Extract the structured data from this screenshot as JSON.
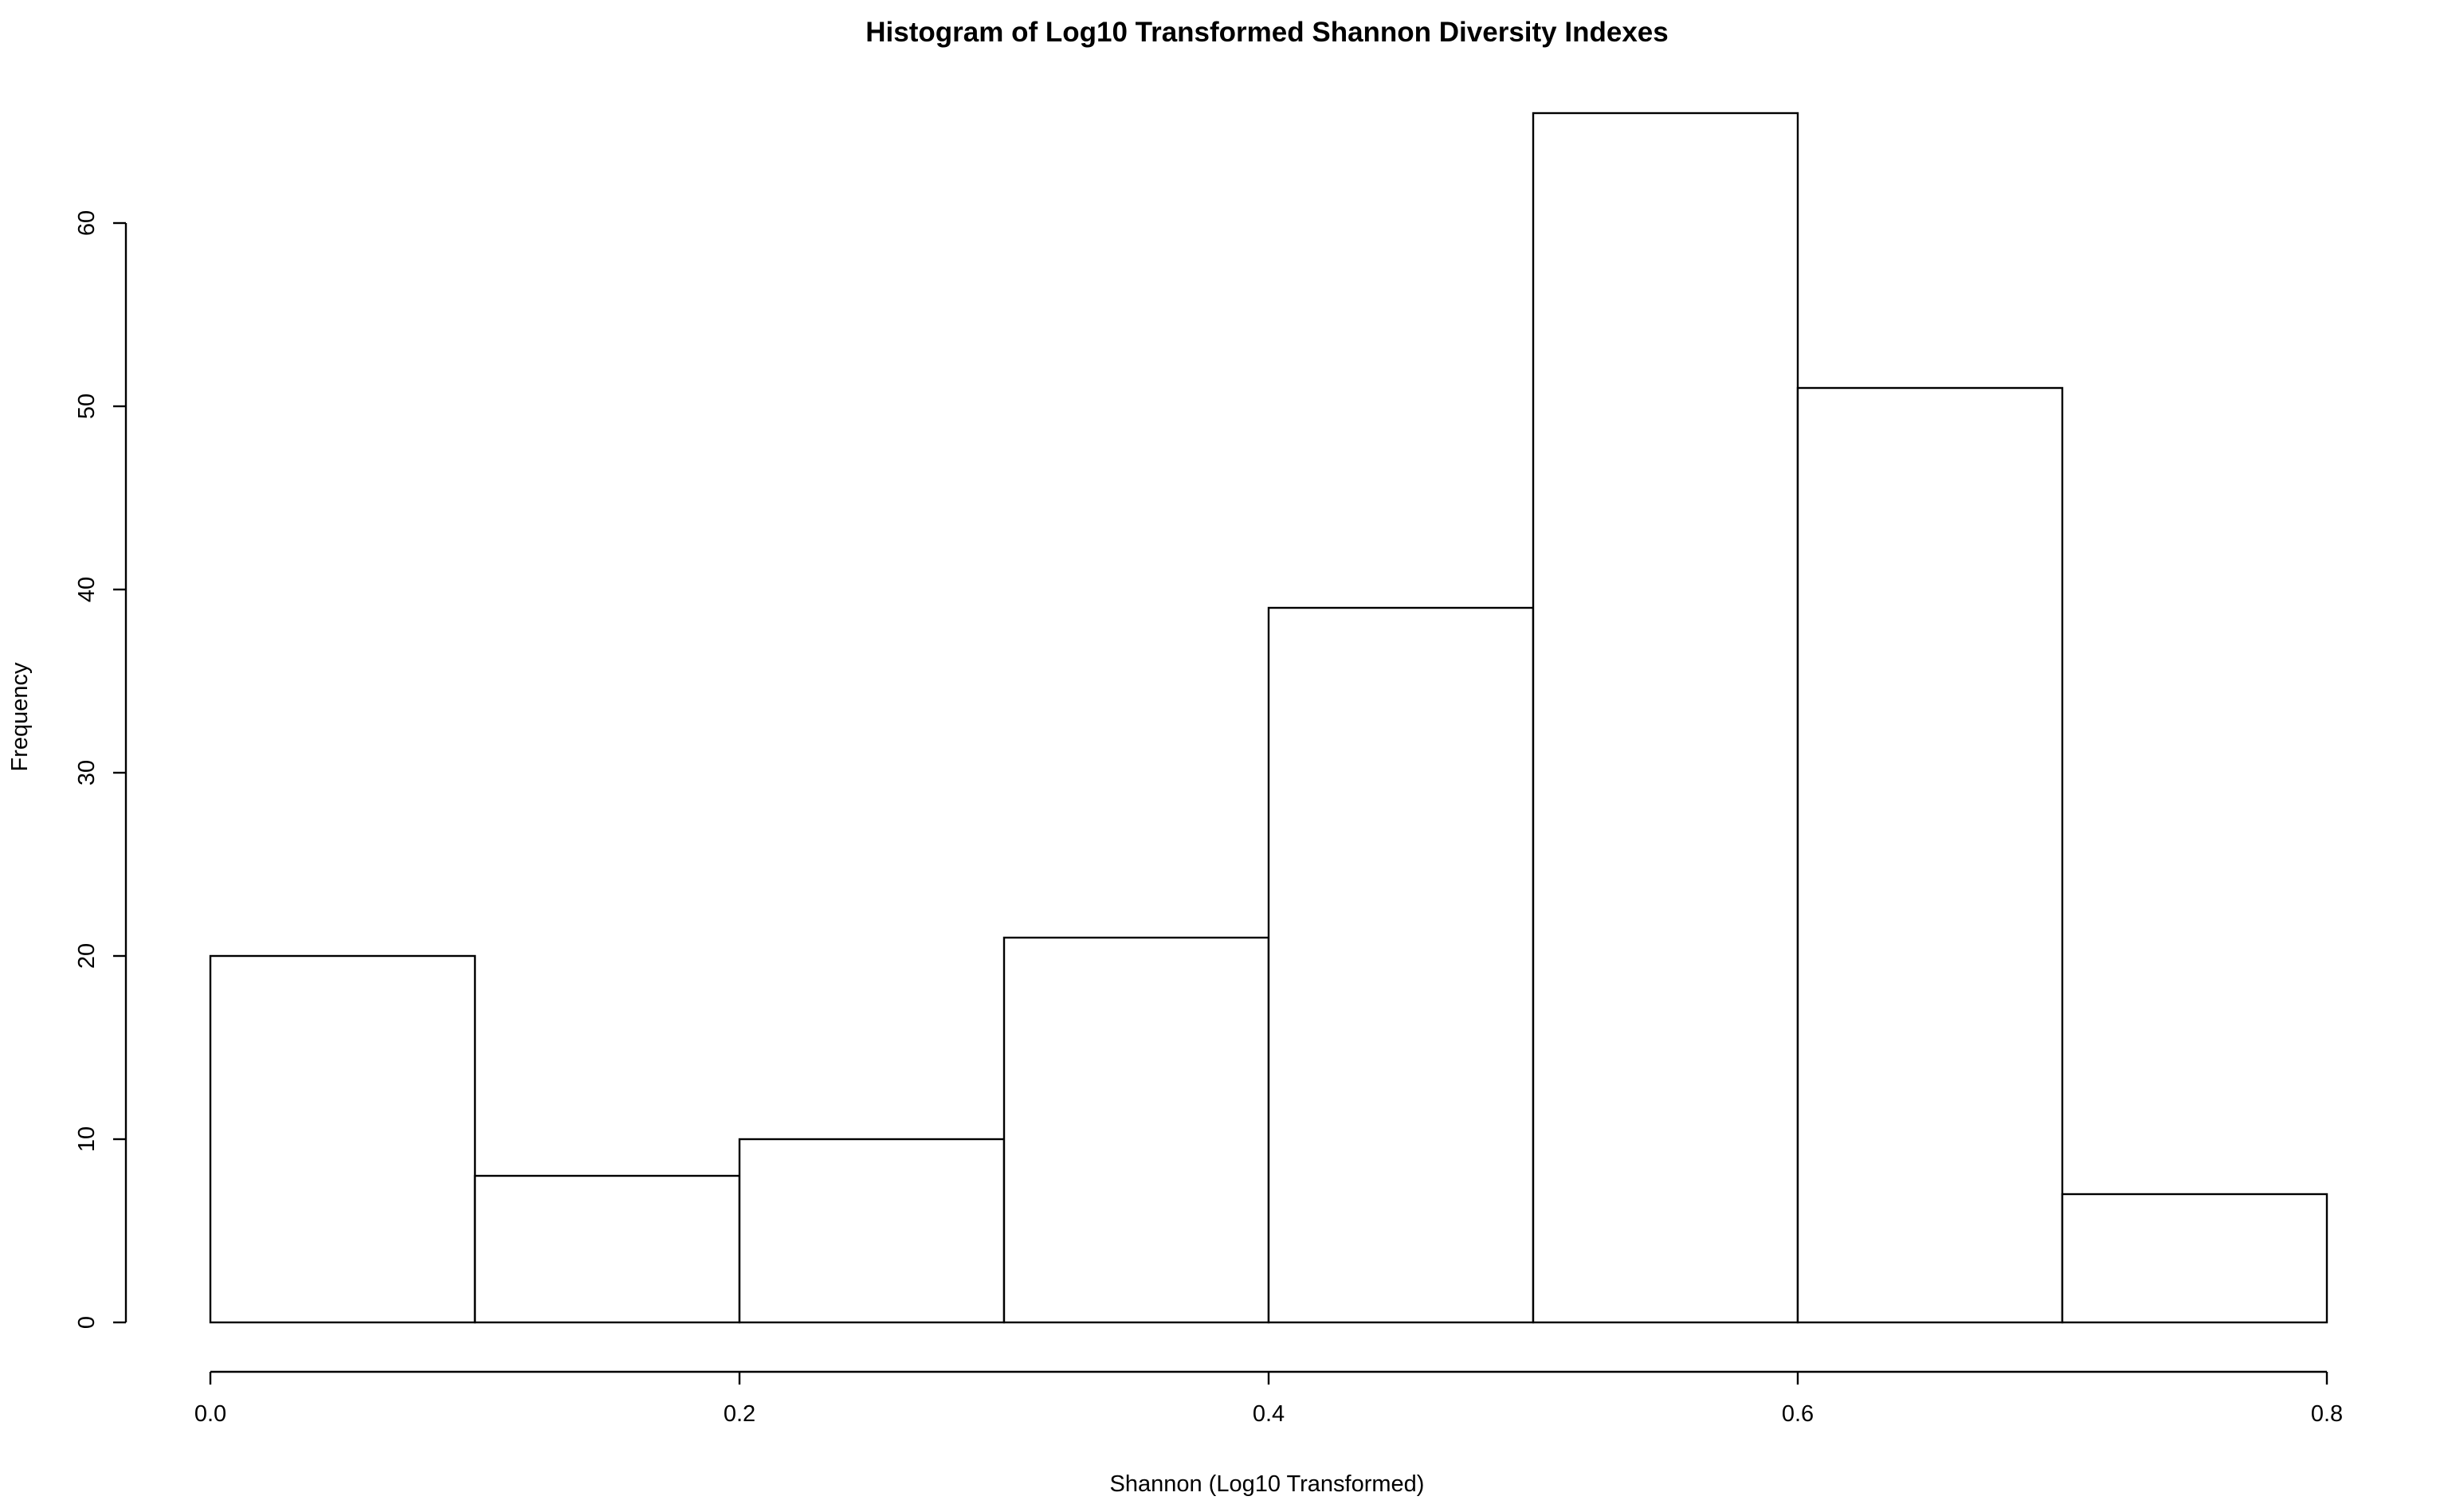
{
  "chart_data": {
    "type": "bar",
    "subtype": "histogram",
    "title": "Histogram of Log10 Transformed Shannon Diversity Indexes",
    "xlabel": "Shannon (Log10 Transformed)",
    "ylabel": "Frequency",
    "bin_edges": [
      0.0,
      0.1,
      0.2,
      0.3,
      0.4,
      0.5,
      0.6,
      0.7,
      0.8
    ],
    "values": [
      20,
      8,
      10,
      21,
      39,
      66,
      51,
      7
    ],
    "xlim": [
      0.0,
      0.8
    ],
    "ylim": [
      0,
      66
    ],
    "x_ticks": [
      {
        "value": 0.0,
        "label": "0.0"
      },
      {
        "value": 0.2,
        "label": "0.2"
      },
      {
        "value": 0.4,
        "label": "0.4"
      },
      {
        "value": 0.6,
        "label": "0.6"
      },
      {
        "value": 0.8,
        "label": "0.8"
      }
    ],
    "y_ticks": [
      {
        "value": 0,
        "label": "0"
      },
      {
        "value": 10,
        "label": "10"
      },
      {
        "value": 20,
        "label": "20"
      },
      {
        "value": 30,
        "label": "30"
      },
      {
        "value": 40,
        "label": "40"
      },
      {
        "value": 50,
        "label": "50"
      },
      {
        "value": 60,
        "label": "60"
      }
    ],
    "grid": false,
    "legend": "none",
    "bar_fill": "#ffffff",
    "bar_stroke": "#000000"
  }
}
